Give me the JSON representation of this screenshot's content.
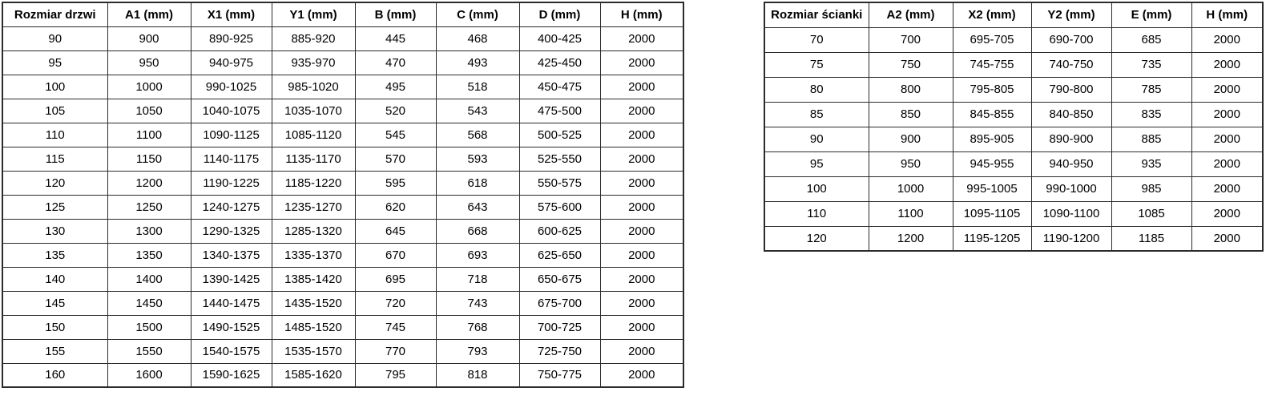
{
  "page": {
    "background_color": "#ffffff",
    "border_color": "#2b2b2b",
    "text_color": "#000000"
  },
  "left_table": {
    "title": "door dimensions",
    "headers": [
      "Rozmiar drzwi",
      "A1 (mm)",
      "X1 (mm)",
      "Y1 (mm)",
      "B (mm)",
      "C (mm)",
      "D (mm)",
      "H (mm)"
    ],
    "rows": [
      [
        "90",
        "900",
        "890-925",
        "885-920",
        "445",
        "468",
        "400-425",
        "2000"
      ],
      [
        "95",
        "950",
        "940-975",
        "935-970",
        "470",
        "493",
        "425-450",
        "2000"
      ],
      [
        "100",
        "1000",
        "990-1025",
        "985-1020",
        "495",
        "518",
        "450-475",
        "2000"
      ],
      [
        "105",
        "1050",
        "1040-1075",
        "1035-1070",
        "520",
        "543",
        "475-500",
        "2000"
      ],
      [
        "110",
        "1100",
        "1090-1125",
        "1085-1120",
        "545",
        "568",
        "500-525",
        "2000"
      ],
      [
        "115",
        "1150",
        "1140-1175",
        "1135-1170",
        "570",
        "593",
        "525-550",
        "2000"
      ],
      [
        "120",
        "1200",
        "1190-1225",
        "1185-1220",
        "595",
        "618",
        "550-575",
        "2000"
      ],
      [
        "125",
        "1250",
        "1240-1275",
        "1235-1270",
        "620",
        "643",
        "575-600",
        "2000"
      ],
      [
        "130",
        "1300",
        "1290-1325",
        "1285-1320",
        "645",
        "668",
        "600-625",
        "2000"
      ],
      [
        "135",
        "1350",
        "1340-1375",
        "1335-1370",
        "670",
        "693",
        "625-650",
        "2000"
      ],
      [
        "140",
        "1400",
        "1390-1425",
        "1385-1420",
        "695",
        "718",
        "650-675",
        "2000"
      ],
      [
        "145",
        "1450",
        "1440-1475",
        "1435-1520",
        "720",
        "743",
        "675-700",
        "2000"
      ],
      [
        "150",
        "1500",
        "1490-1525",
        "1485-1520",
        "745",
        "768",
        "700-725",
        "2000"
      ],
      [
        "155",
        "1550",
        "1540-1575",
        "1535-1570",
        "770",
        "793",
        "725-750",
        "2000"
      ],
      [
        "160",
        "1600",
        "1590-1625",
        "1585-1620",
        "795",
        "818",
        "750-775",
        "2000"
      ]
    ]
  },
  "right_table": {
    "title": "wall panel dimensions",
    "headers": [
      "Rozmiar ścianki",
      "A2 (mm)",
      "X2 (mm)",
      "Y2 (mm)",
      "E (mm)",
      "H (mm)"
    ],
    "rows": [
      [
        "70",
        "700",
        "695-705",
        "690-700",
        "685",
        "2000"
      ],
      [
        "75",
        "750",
        "745-755",
        "740-750",
        "735",
        "2000"
      ],
      [
        "80",
        "800",
        "795-805",
        "790-800",
        "785",
        "2000"
      ],
      [
        "85",
        "850",
        "845-855",
        "840-850",
        "835",
        "2000"
      ],
      [
        "90",
        "900",
        "895-905",
        "890-900",
        "885",
        "2000"
      ],
      [
        "95",
        "950",
        "945-955",
        "940-950",
        "935",
        "2000"
      ],
      [
        "100",
        "1000",
        "995-1005",
        "990-1000",
        "985",
        "2000"
      ],
      [
        "110",
        "1100",
        "1095-1105",
        "1090-1100",
        "1085",
        "2000"
      ],
      [
        "120",
        "1200",
        "1195-1205",
        "1190-1200",
        "1185",
        "2000"
      ]
    ]
  }
}
